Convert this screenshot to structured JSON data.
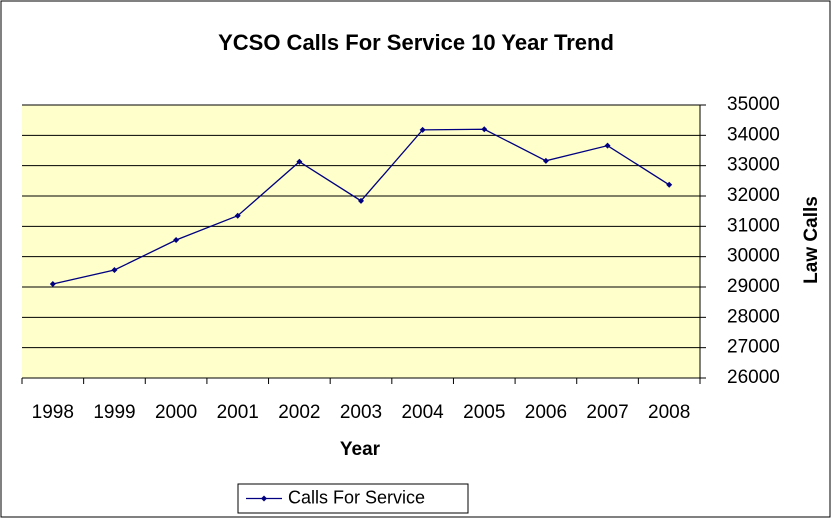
{
  "chart_data": {
    "type": "line",
    "title": "YCSO Calls For Service 10 Year Trend",
    "x_label": "Year",
    "y_label": "Law Calls",
    "categories": [
      "1998",
      "1999",
      "2000",
      "2001",
      "2002",
      "2003",
      "2004",
      "2005",
      "2006",
      "2007",
      "2008"
    ],
    "series": [
      {
        "name": "Calls For Service",
        "color": "#000080",
        "values": [
          29100,
          29560,
          30550,
          31350,
          33130,
          31840,
          34180,
          34200,
          33160,
          33660,
          32370
        ]
      }
    ],
    "ylim": [
      26000,
      35000
    ],
    "yticks": [
      26000,
      27000,
      28000,
      29000,
      30000,
      31000,
      32000,
      33000,
      34000,
      35000
    ],
    "y_axis_side": "right",
    "grid": true,
    "legend": "bottom",
    "plot_background": "#ffffcc"
  }
}
